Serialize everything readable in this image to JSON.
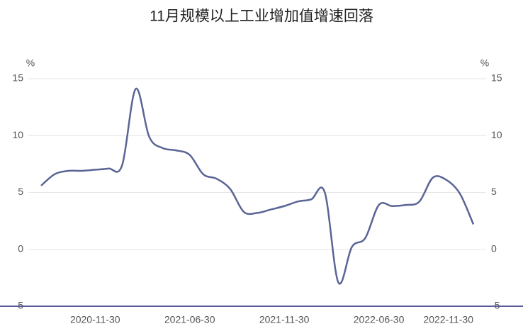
{
  "chart_data": {
    "type": "line",
    "title": "11月规模以上工业增加值增速回落",
    "y_unit": "%",
    "y2_unit": "%",
    "categories": [
      null,
      null,
      null,
      null,
      "2020-11-30",
      null,
      null,
      null,
      null,
      null,
      null,
      "2021-06-30",
      null,
      null,
      null,
      null,
      null,
      null,
      "2021-11-30",
      null,
      null,
      null,
      null,
      null,
      null,
      "2022-06-30",
      null,
      null,
      null,
      null,
      null,
      null,
      "2022-11-30"
    ],
    "series": [
      {
        "color": "#5a6596",
        "values": [
          5.6,
          6.6,
          6.9,
          6.9,
          7.0,
          7.1,
          7.4,
          14.1,
          9.9,
          8.9,
          8.7,
          8.3,
          6.6,
          6.2,
          5.3,
          3.3,
          3.2,
          3.5,
          3.8,
          4.2,
          4.4,
          5.0,
          -2.9,
          0.2,
          1.0,
          3.9,
          3.8,
          3.9,
          4.2,
          6.3,
          6.1,
          4.9,
          2.2
        ]
      }
    ],
    "ylim": [
      -5,
      15
    ],
    "yticks": [
      -5,
      0,
      5,
      10,
      15
    ],
    "y2lim": [
      -5,
      15
    ],
    "y2ticks": [
      -5,
      0,
      5,
      10,
      15
    ],
    "grid": true,
    "axis_color": "#5a5a96"
  }
}
